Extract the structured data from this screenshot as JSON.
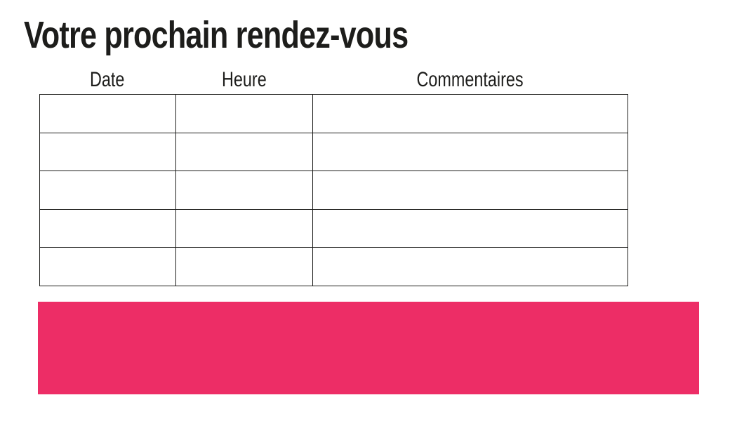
{
  "page": {
    "title": "Votre prochain rendez-vous",
    "background_color": "#ffffff",
    "text_color": "#1d1d1b"
  },
  "table": {
    "columns": [
      {
        "label": "Date"
      },
      {
        "label": "Heure"
      },
      {
        "label": "Commentaires"
      }
    ],
    "rows": [
      [
        "",
        "",
        ""
      ],
      [
        "",
        "",
        ""
      ],
      [
        "",
        "",
        ""
      ],
      [
        "",
        "",
        ""
      ],
      [
        "",
        "",
        ""
      ]
    ],
    "border_color": "#1d1d1b"
  },
  "banner": {
    "label": "",
    "color": "#ED2D66"
  }
}
